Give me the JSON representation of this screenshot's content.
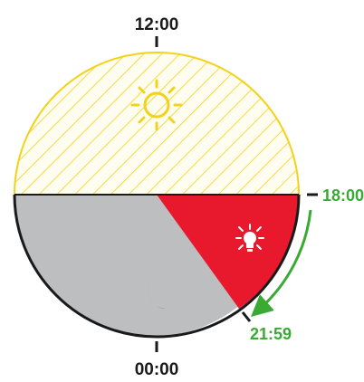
{
  "diagram": {
    "labels": {
      "noon": "12:00",
      "midnight": "00:00",
      "evening": "18:00",
      "lights_off": "21:59"
    },
    "colors": {
      "day_hatch": "#f2d21b",
      "day_fill": "#fffdf0",
      "night": "#bcbec0",
      "light_on": "#e8192c",
      "outline": "#1a1a1a",
      "arrow": "#3aaa35",
      "sun": "#f2d21b",
      "moon": "#1a1a1a",
      "bulb": "#ffffff"
    },
    "icons": {
      "day": "sun-icon",
      "night": "moon-icon",
      "light": "light-bulb-icon"
    }
  }
}
